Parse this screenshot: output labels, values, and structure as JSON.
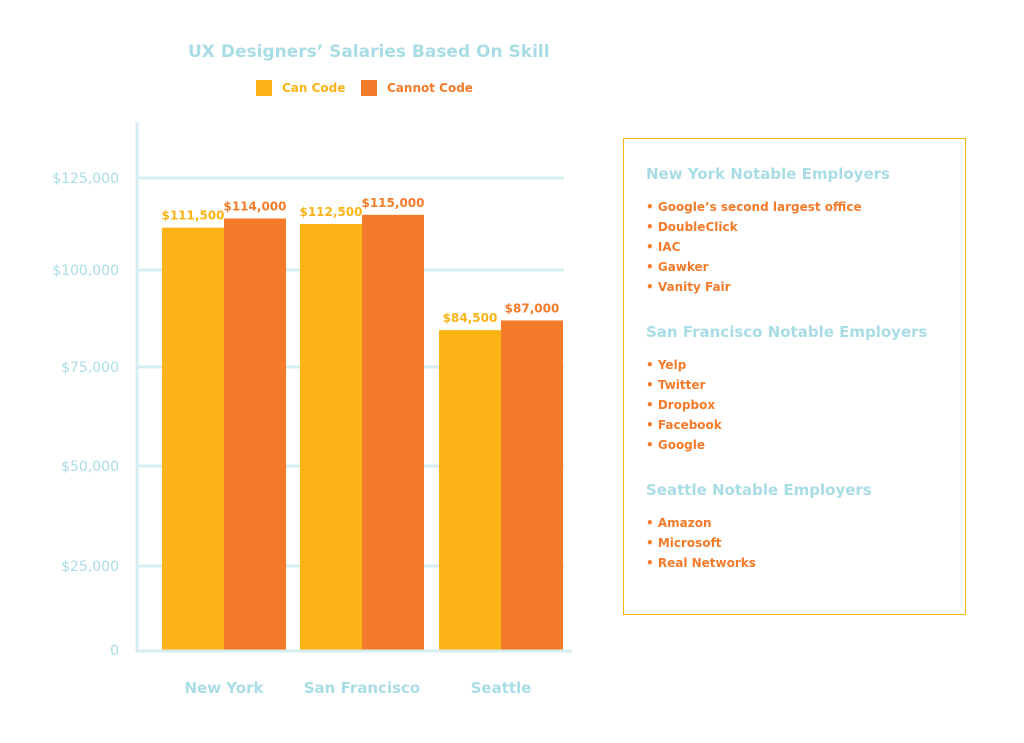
{
  "chart_data": {
    "type": "bar",
    "title": "UX Designers’ Salaries Based On Skill",
    "categories": [
      "New York",
      "San Francisco",
      "Seattle"
    ],
    "series": [
      {
        "name": "Can Code",
        "values": [
          111500,
          112500,
          84500
        ],
        "labels": [
          "$111,500",
          "$112,500",
          "$84,500"
        ],
        "color": "#fcb316"
      },
      {
        "name": "Cannot Code",
        "values": [
          114000,
          115000,
          87000
        ],
        "labels": [
          "$114,000",
          "$115,000",
          "$87,000"
        ],
        "color": "#f47b2a"
      }
    ],
    "yticks": [
      0,
      25000,
      50000,
      75000,
      100000,
      125000
    ],
    "ytick_labels": [
      "0",
      "$25,000",
      "$50,000",
      "$75,000",
      "$100,000",
      "$125,000"
    ],
    "ylim": [
      0,
      125000
    ],
    "grid": true,
    "legend": "top",
    "axis_color": "#d5ecf0",
    "label_color": "#a9dde6"
  },
  "panel": [
    {
      "heading": "New York Notable Employers",
      "items": [
        "• Google’s second largest office",
        "• DoubleClick",
        "• IAC",
        "• Gawker",
        "• Vanity Fair"
      ]
    },
    {
      "heading": "San Francisco Notable Employers",
      "items": [
        "• Yelp",
        "• Twitter",
        "• Dropbox",
        "• Facebook",
        "• Google"
      ]
    },
    {
      "heading": "Seattle Notable Employers",
      "items": [
        "• Amazon",
        "• Microsoft",
        "• Real Networks"
      ]
    }
  ]
}
